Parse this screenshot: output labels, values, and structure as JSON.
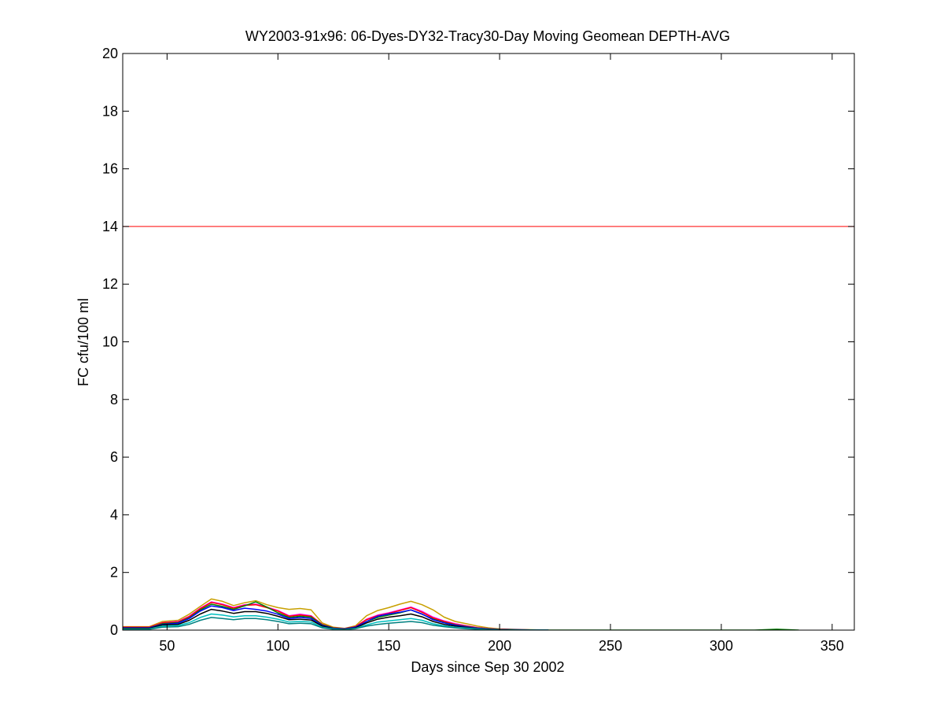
{
  "chart_data": {
    "type": "line",
    "title": "WY2003-91x96: 06-Dyes-DY32-Tracy30-Day Moving Geomean DEPTH-AVG",
    "xlabel": "Days since Sep 30 2002",
    "ylabel": "FC cfu/100 ml",
    "xlim": [
      30,
      360
    ],
    "ylim": [
      0,
      20
    ],
    "xticks": [
      50,
      100,
      150,
      200,
      250,
      300,
      350
    ],
    "yticks": [
      0,
      2,
      4,
      6,
      8,
      10,
      12,
      14,
      16,
      18,
      20
    ],
    "grid": false,
    "reference_line": {
      "y": 14,
      "color": "#ff0000"
    },
    "series": [
      {
        "color": "#c8a000",
        "x": [
          30,
          42,
          48,
          55,
          60,
          65,
          70,
          75,
          80,
          85,
          90,
          95,
          100,
          105,
          110,
          115,
          120,
          125,
          130,
          135,
          140,
          145,
          150,
          155,
          160,
          165,
          170,
          175,
          180,
          185,
          190,
          195,
          200,
          210,
          222
        ],
        "y": [
          0.12,
          0.12,
          0.3,
          0.34,
          0.55,
          0.82,
          1.08,
          1.0,
          0.85,
          0.95,
          1.02,
          0.88,
          0.78,
          0.72,
          0.75,
          0.7,
          0.25,
          0.1,
          0.06,
          0.15,
          0.5,
          0.68,
          0.78,
          0.9,
          1.0,
          0.88,
          0.7,
          0.45,
          0.3,
          0.22,
          0.14,
          0.08,
          0.04,
          0.02,
          0.0
        ]
      },
      {
        "color": "#ff00ff",
        "x": [
          30,
          42,
          48,
          55,
          60,
          65,
          70,
          75,
          80,
          85,
          90,
          95,
          100,
          105,
          110,
          115,
          120,
          125,
          130,
          135,
          140,
          145,
          150,
          155,
          160,
          165,
          170,
          175,
          180,
          185,
          190,
          195,
          200,
          210,
          222
        ],
        "y": [
          0.1,
          0.1,
          0.26,
          0.3,
          0.48,
          0.76,
          0.98,
          0.9,
          0.78,
          0.88,
          0.9,
          0.8,
          0.68,
          0.5,
          0.55,
          0.5,
          0.2,
          0.08,
          0.05,
          0.12,
          0.38,
          0.52,
          0.6,
          0.7,
          0.8,
          0.65,
          0.45,
          0.32,
          0.22,
          0.15,
          0.09,
          0.05,
          0.03,
          0.01,
          0.0
        ]
      },
      {
        "color": "#ff0000",
        "x": [
          30,
          42,
          48,
          55,
          60,
          65,
          70,
          75,
          80,
          85,
          90,
          95,
          100,
          105,
          110,
          115,
          120,
          125,
          130,
          135,
          140,
          145,
          150,
          155,
          160,
          165,
          170,
          175,
          180,
          185,
          190,
          195,
          200,
          210,
          222
        ],
        "y": [
          0.1,
          0.1,
          0.25,
          0.28,
          0.46,
          0.74,
          0.96,
          0.88,
          0.76,
          0.86,
          0.88,
          0.78,
          0.66,
          0.48,
          0.52,
          0.48,
          0.2,
          0.08,
          0.05,
          0.12,
          0.36,
          0.5,
          0.58,
          0.68,
          0.78,
          0.62,
          0.42,
          0.3,
          0.2,
          0.14,
          0.08,
          0.05,
          0.03,
          0.01,
          0.0
        ]
      },
      {
        "color": "#008000",
        "x": [
          30,
          42,
          48,
          55,
          60,
          65,
          70,
          75,
          80,
          85,
          90,
          95,
          100,
          105,
          110,
          115,
          120,
          125,
          130,
          135,
          140,
          145,
          150,
          155,
          160,
          165,
          170,
          175,
          180,
          185,
          190,
          195,
          200,
          210,
          222,
          280,
          315,
          325,
          335
        ],
        "y": [
          0.08,
          0.08,
          0.22,
          0.26,
          0.42,
          0.7,
          0.9,
          0.82,
          0.72,
          0.84,
          0.98,
          0.8,
          0.6,
          0.44,
          0.48,
          0.45,
          0.18,
          0.07,
          0.04,
          0.1,
          0.3,
          0.44,
          0.52,
          0.6,
          0.7,
          0.55,
          0.38,
          0.26,
          0.18,
          0.12,
          0.07,
          0.04,
          0.02,
          0.01,
          0.0,
          0.0,
          0.0,
          0.03,
          0.0
        ]
      },
      {
        "color": "#0000ff",
        "x": [
          30,
          42,
          48,
          55,
          60,
          65,
          70,
          75,
          80,
          85,
          90,
          95,
          100,
          105,
          110,
          115,
          120,
          125,
          130,
          135,
          140,
          145,
          150,
          155,
          160,
          165,
          170,
          175,
          180,
          185,
          190,
          195,
          200,
          210,
          222
        ],
        "y": [
          0.08,
          0.08,
          0.2,
          0.24,
          0.4,
          0.66,
          0.84,
          0.78,
          0.68,
          0.76,
          0.72,
          0.66,
          0.55,
          0.4,
          0.44,
          0.4,
          0.16,
          0.06,
          0.04,
          0.1,
          0.3,
          0.48,
          0.56,
          0.62,
          0.7,
          0.56,
          0.36,
          0.25,
          0.17,
          0.11,
          0.06,
          0.04,
          0.02,
          0.01,
          0.0
        ]
      },
      {
        "color": "#000000",
        "x": [
          30,
          42,
          48,
          55,
          60,
          65,
          70,
          75,
          80,
          85,
          90,
          95,
          100,
          105,
          110,
          115,
          120,
          125,
          130,
          135,
          140,
          145,
          150,
          155,
          160,
          165,
          170,
          175,
          180,
          185,
          190,
          195,
          200,
          210,
          222
        ],
        "y": [
          0.06,
          0.06,
          0.18,
          0.2,
          0.34,
          0.56,
          0.72,
          0.66,
          0.58,
          0.64,
          0.64,
          0.58,
          0.48,
          0.36,
          0.38,
          0.35,
          0.14,
          0.05,
          0.03,
          0.08,
          0.25,
          0.38,
          0.45,
          0.5,
          0.56,
          0.46,
          0.3,
          0.2,
          0.14,
          0.09,
          0.05,
          0.03,
          0.02,
          0.0,
          0.0
        ]
      },
      {
        "color": "#00bfbf",
        "x": [
          30,
          42,
          48,
          55,
          60,
          65,
          70,
          75,
          80,
          85,
          90,
          95,
          100,
          105,
          110,
          115,
          120,
          125,
          130,
          135,
          140,
          145,
          150,
          155,
          160,
          165,
          170,
          175,
          180,
          185,
          190,
          195,
          200,
          210,
          222
        ],
        "y": [
          0.04,
          0.04,
          0.14,
          0.16,
          0.26,
          0.44,
          0.56,
          0.52,
          0.46,
          0.5,
          0.5,
          0.45,
          0.38,
          0.28,
          0.3,
          0.28,
          0.1,
          0.04,
          0.02,
          0.06,
          0.18,
          0.28,
          0.32,
          0.36,
          0.4,
          0.34,
          0.22,
          0.15,
          0.1,
          0.07,
          0.04,
          0.02,
          0.01,
          0.0,
          0.0
        ]
      },
      {
        "color": "#008080",
        "x": [
          30,
          42,
          48,
          55,
          60,
          65,
          70,
          75,
          80,
          85,
          90,
          95,
          100,
          105,
          110,
          115,
          120,
          125,
          130,
          135,
          140,
          145,
          150,
          155,
          160,
          165,
          170,
          175,
          180,
          185,
          190,
          195,
          200,
          210,
          222
        ],
        "y": [
          0.03,
          0.03,
          0.1,
          0.12,
          0.2,
          0.34,
          0.44,
          0.4,
          0.36,
          0.4,
          0.4,
          0.36,
          0.3,
          0.22,
          0.24,
          0.22,
          0.08,
          0.03,
          0.02,
          0.05,
          0.14,
          0.2,
          0.24,
          0.27,
          0.3,
          0.26,
          0.17,
          0.12,
          0.08,
          0.05,
          0.03,
          0.02,
          0.01,
          0.0,
          0.0
        ]
      }
    ]
  }
}
